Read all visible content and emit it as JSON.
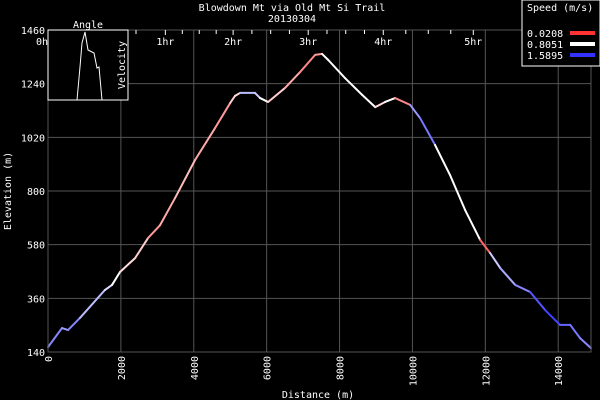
{
  "chart_data": {
    "type": "line",
    "title": "Blowdown Mt via Old Mt Si Trail",
    "subtitle": "20130304",
    "xlabel": "Distance (m)",
    "ylabel": "Elevation (m)",
    "xlim": [
      0,
      14900
    ],
    "ylim": [
      140,
      1460
    ],
    "x_ticks": [
      0,
      2000,
      4000,
      6000,
      8000,
      10000,
      12000,
      14000
    ],
    "y_ticks": [
      140,
      360,
      580,
      800,
      1020,
      1240,
      1460
    ],
    "grid": true,
    "time_axis": {
      "labels": [
        "0h",
        "1hr",
        "2hr",
        "3hr",
        "4hr",
        "5hr"
      ],
      "distances": [
        0,
        3220,
        5080,
        7140,
        9200,
        11670
      ]
    },
    "legend": {
      "title": "Speed (m/s)",
      "placement": "top-right",
      "entries": [
        {
          "label": "0.0208",
          "color": "#ff3333"
        },
        {
          "label": "0.8051",
          "color": "#ffffff"
        },
        {
          "label": "1.5895",
          "color": "#3333ff"
        }
      ]
    },
    "inset": {
      "title": "Angle",
      "ylabel": "Velocity"
    },
    "series": [
      {
        "x": [
          0,
          384,
          550,
          880,
          1560,
          1757,
          1976,
          2390,
          2745,
          3075,
          3486,
          4035,
          4584,
          5000,
          5133,
          5270,
          5680,
          5820,
          6040,
          6500,
          6920,
          7330,
          7520,
          7690,
          8150,
          8620,
          8980,
          9250,
          9525,
          9937,
          10210,
          10620,
          11030,
          11446,
          11860,
          12130,
          12410,
          12820,
          13230,
          13640,
          14050,
          14330,
          14600,
          14900
        ],
        "y": [
          160,
          238,
          230,
          280,
          394,
          415,
          468,
          525,
          607,
          660,
          771,
          927,
          1058,
          1161,
          1190,
          1202,
          1202,
          1181,
          1165,
          1222,
          1288,
          1358,
          1362,
          1337,
          1263,
          1194,
          1144,
          1165,
          1181,
          1153,
          1099,
          989,
          866,
          722,
          599,
          546,
          484,
          415,
          386,
          312,
          251,
          251,
          197,
          156
        ],
        "colors": [
          "#8888ff",
          "#8888ff",
          "#9999ff",
          "#8888ff",
          "#bbbbff",
          "#ddddff",
          "#ffffff",
          "#ffdddd",
          "#ffcccc",
          "#ff9999",
          "#ffaaaa",
          "#ffbbbb",
          "#ffaaaa",
          "#ff9999",
          "#ffcccc",
          "#ffdddd",
          "#bbbbff",
          "#ccccff",
          "#ffffff",
          "#ffcccc",
          "#ffaaaa",
          "#ff8888",
          "#ff9999",
          "#ffffff",
          "#ffffff",
          "#ffffff",
          "#ffffff",
          "#ffdddd",
          "#ffffff",
          "#ff8888",
          "#9999ff",
          "#7777ff",
          "#ffffff",
          "#ffffff",
          "#ffffff",
          "#ff6666",
          "#ccccff",
          "#aaaaff",
          "#8888ff",
          "#5555ff",
          "#4444ff",
          "#6666ff",
          "#7777ff",
          "#8888ff"
        ]
      }
    ]
  }
}
